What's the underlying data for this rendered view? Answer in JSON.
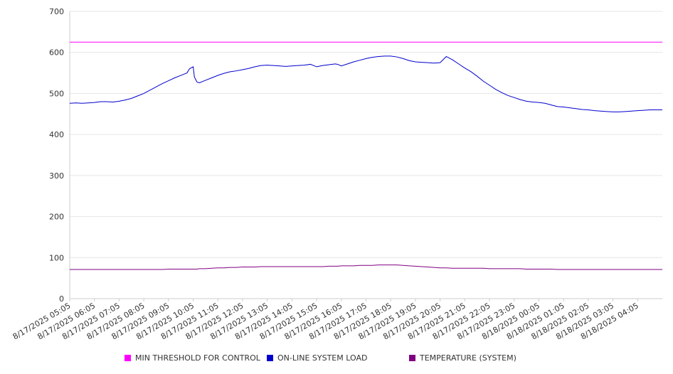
{
  "chart_data": {
    "type": "line",
    "title": "",
    "xlabel": "",
    "ylabel": "",
    "ylim": [
      0,
      700
    ],
    "yticks": [
      0,
      100,
      200,
      300,
      400,
      500,
      600,
      700
    ],
    "grid": true,
    "legend_position": "bottom",
    "x_tick_labels": [
      "8/17/2025 05:05",
      "8/17/2025 06:05",
      "8/17/2025 07:05",
      "8/17/2025 08:05",
      "8/17/2025 09:05",
      "8/17/2025 10:05",
      "8/17/2025 11:05",
      "8/17/2025 12:05",
      "8/17/2025 13:05",
      "8/17/2025 14:05",
      "8/17/2025 15:05",
      "8/17/2025 16:05",
      "8/17/2025 17:05",
      "8/17/2025 18:05",
      "8/17/2025 19:05",
      "8/17/2025 20:05",
      "8/17/2025 21:05",
      "8/17/2025 22:05",
      "8/17/2025 23:05",
      "8/18/2025 00:05",
      "8/18/2025 01:05",
      "8/18/2025 02:05",
      "8/18/2025 03:05",
      "8/18/2025 04:05"
    ],
    "x_hours": [
      0,
      0.25,
      0.5,
      0.75,
      1,
      1.25,
      1.5,
      1.75,
      2,
      2.25,
      2.5,
      2.75,
      3,
      3.25,
      3.5,
      3.75,
      4,
      4.25,
      4.5,
      4.75,
      4.85,
      5,
      5.05,
      5.15,
      5.25,
      5.5,
      5.75,
      6,
      6.25,
      6.5,
      6.75,
      7,
      7.25,
      7.5,
      7.75,
      8,
      8.25,
      8.5,
      8.75,
      9,
      9.25,
      9.5,
      9.75,
      10,
      10.25,
      10.5,
      10.75,
      10.85,
      11,
      11.25,
      11.5,
      11.75,
      12,
      12.25,
      12.5,
      12.75,
      13,
      13.25,
      13.5,
      13.75,
      14,
      14.25,
      14.5,
      14.75,
      15,
      15.25,
      15.5,
      15.75,
      16,
      16.25,
      16.5,
      16.75,
      17,
      17.25,
      17.5,
      17.75,
      18,
      18.25,
      18.5,
      18.75,
      19,
      19.25,
      19.5,
      19.75,
      20,
      20.25,
      20.5,
      20.75,
      21,
      21.25,
      21.5,
      21.75,
      22,
      22.25,
      22.5,
      22.75,
      23,
      23.25,
      23.5,
      23.75,
      24
    ],
    "series": [
      {
        "name": "MIN THRESHOLD FOR CONTROL",
        "color": "#ff00ff",
        "values": [
          625,
          625
        ]
      },
      {
        "name": "ON-LINE SYSTEM LOAD",
        "color": "#0000cc",
        "values": [
          476,
          477,
          476,
          477,
          478,
          480,
          480,
          479,
          481,
          484,
          488,
          494,
          500,
          508,
          516,
          524,
          531,
          538,
          544,
          550,
          560,
          565,
          540,
          528,
          526,
          532,
          538,
          544,
          549,
          553,
          555,
          558,
          561,
          565,
          568,
          569,
          568,
          567,
          566,
          567,
          568,
          569,
          571,
          565,
          568,
          570,
          572,
          571,
          567,
          572,
          577,
          581,
          585,
          588,
          590,
          591,
          591,
          589,
          585,
          580,
          577,
          576,
          575,
          574,
          575,
          590,
          582,
          572,
          562,
          553,
          542,
          530,
          520,
          510,
          502,
          495,
          490,
          485,
          481,
          479,
          478,
          476,
          472,
          468,
          467,
          465,
          463,
          461,
          460,
          458,
          457,
          456,
          455,
          455,
          456,
          457,
          458,
          459,
          460,
          460,
          460
        ]
      },
      {
        "name": "TEMPERATURE (SYSTEM)",
        "color": "#800080",
        "values": [
          71,
          71,
          71,
          71,
          71,
          71,
          71,
          71,
          71,
          71,
          71,
          71,
          71,
          71,
          71,
          71,
          72,
          72,
          72,
          72,
          72,
          72,
          72,
          72,
          73,
          73,
          74,
          75,
          75,
          76,
          76,
          77,
          77,
          77,
          78,
          78,
          78,
          78,
          78,
          78,
          78,
          78,
          78,
          78,
          78,
          79,
          79,
          79,
          80,
          80,
          80,
          81,
          81,
          81,
          82,
          82,
          82,
          82,
          81,
          80,
          79,
          78,
          77,
          76,
          75,
          75,
          74,
          74,
          74,
          74,
          74,
          74,
          73,
          73,
          73,
          73,
          73,
          73,
          72,
          72,
          72,
          72,
          72,
          71,
          71,
          71,
          71,
          71,
          71,
          71,
          71,
          71,
          71,
          71,
          71,
          71,
          71,
          71,
          71,
          71,
          71
        ]
      }
    ]
  },
  "legend": {
    "items": [
      {
        "label": "MIN THRESHOLD FOR CONTROL",
        "color": "#ff00ff"
      },
      {
        "label": "ON-LINE SYSTEM LOAD",
        "color": "#0000cc"
      },
      {
        "label": "TEMPERATURE (SYSTEM)",
        "color": "#800080"
      }
    ]
  }
}
